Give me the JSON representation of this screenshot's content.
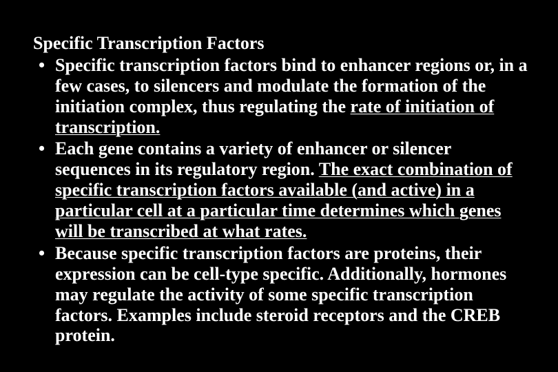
{
  "background_color": "#000000",
  "text_color": "#ffffff",
  "font_family": "Times New Roman",
  "font_weight": "bold",
  "font_size_pt": 20,
  "title": "Specific Transcription Factors",
  "bullets": [
    {
      "pre": "Specific transcription factors bind to enhancer regions or, in a few cases, to silencers and modulate the formation of the initiation complex, thus regulating the ",
      "underlined": "rate of initiation of transcription.",
      "post": ""
    },
    {
      "pre": "Each gene contains a variety of enhancer or silencer sequences in its regulatory region. ",
      "underlined": "The exact combination of specific transcription factors available (and active) in a particular cell at a particular time determines which genes will be transcribed at what rates.",
      "post": ""
    },
    {
      "pre": "Because specific transcription factors are proteins, their expression can be cell-type specific. Additionally, hormones may regulate the activity of some specific transcription factors. Examples include steroid receptors and the CREB protein.",
      "underlined": "",
      "post": ""
    }
  ]
}
